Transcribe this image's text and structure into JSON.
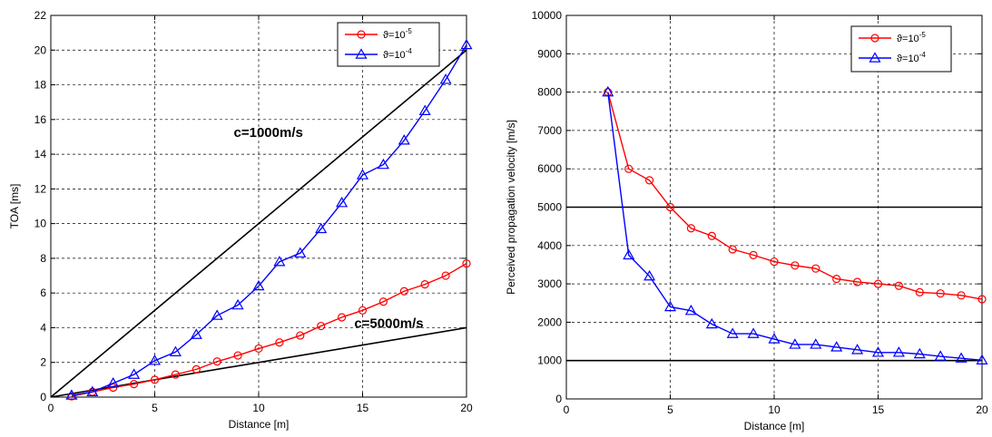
{
  "chart_data": [
    {
      "type": "line",
      "xlabel": "Distance   [m]",
      "ylabel": "TOA [ms]",
      "xlim": [
        0,
        20
      ],
      "ylim": [
        0,
        22
      ],
      "xticks": [
        "0",
        "5",
        "10",
        "15",
        "20"
      ],
      "yticks": [
        "0",
        "2",
        "4",
        "6",
        "8",
        "10",
        "12",
        "14",
        "16",
        "18",
        "20",
        "22"
      ],
      "grid": true,
      "legend_position": "top-right",
      "legend_base": "ϑ=10",
      "series": [
        {
          "name": "ϑ=10⁻⁵",
          "exponent": "-5",
          "color": "#ff0000",
          "marker": "circle",
          "x": [
            1,
            2,
            3,
            4,
            5,
            6,
            7,
            8,
            9,
            10,
            11,
            12,
            13,
            14,
            15,
            16,
            17,
            18,
            19,
            20
          ],
          "y": [
            0.05,
            0.3,
            0.55,
            0.75,
            1.0,
            1.3,
            1.6,
            2.05,
            2.4,
            2.8,
            3.15,
            3.55,
            4.1,
            4.6,
            5.0,
            5.5,
            6.1,
            6.5,
            7.0,
            7.7
          ]
        },
        {
          "name": "ϑ=10⁻⁴",
          "exponent": "-4",
          "color": "#0000ff",
          "marker": "triangle",
          "x": [
            1,
            2,
            3,
            4,
            5,
            6,
            7,
            8,
            9,
            10,
            11,
            12,
            13,
            14,
            15,
            16,
            17,
            18,
            19,
            20
          ],
          "y": [
            0.1,
            0.3,
            0.8,
            1.3,
            2.1,
            2.6,
            3.6,
            4.7,
            5.3,
            6.4,
            7.8,
            8.3,
            9.7,
            11.2,
            12.8,
            13.4,
            14.8,
            16.5,
            18.3,
            20.3
          ]
        }
      ],
      "reference_lines": [
        {
          "label": "c=1000m/s",
          "x": [
            0,
            20
          ],
          "y": [
            0,
            20
          ],
          "color": "#000000"
        },
        {
          "label": "c=5000m/s",
          "x": [
            0,
            20
          ],
          "y": [
            0,
            4
          ],
          "color": "#000000"
        }
      ],
      "annotations": [
        {
          "text": "c=1000m/s",
          "x": 8.8,
          "y": 15.0
        },
        {
          "text": "c=5000m/s",
          "x": 14.6,
          "y": 4.0
        }
      ]
    },
    {
      "type": "line",
      "xlabel": "Distance   [m]",
      "ylabel": "Perceived propagation velocity [m/s]",
      "xlim": [
        0,
        20
      ],
      "ylim": [
        0,
        10000
      ],
      "xticks": [
        "0",
        "5",
        "10",
        "15",
        "20"
      ],
      "yticks": [
        "0",
        "1000",
        "2000",
        "3000",
        "4000",
        "5000",
        "6000",
        "7000",
        "8000",
        "9000",
        "10000"
      ],
      "grid": true,
      "legend_position": "top-right",
      "legend_base": "ϑ=10",
      "series": [
        {
          "name": "ϑ=10⁻⁵",
          "exponent": "-5",
          "color": "#ff0000",
          "marker": "circle",
          "x": [
            2,
            3,
            4,
            5,
            6,
            7,
            8,
            9,
            10,
            11,
            12,
            13,
            14,
            15,
            16,
            17,
            18,
            19,
            20
          ],
          "y": [
            8000,
            6000,
            5700,
            5000,
            4450,
            4250,
            3900,
            3750,
            3580,
            3480,
            3400,
            3130,
            3050,
            3000,
            2950,
            2780,
            2750,
            2700,
            2600
          ]
        },
        {
          "name": "ϑ=10⁻⁴",
          "exponent": "-4",
          "color": "#0000ff",
          "marker": "triangle",
          "x": [
            2,
            3,
            4,
            5,
            6,
            7,
            8,
            9,
            10,
            11,
            12,
            13,
            14,
            15,
            16,
            17,
            18,
            19,
            20
          ],
          "y": [
            8000,
            3750,
            3200,
            2400,
            2300,
            1950,
            1700,
            1700,
            1560,
            1420,
            1420,
            1350,
            1280,
            1210,
            1210,
            1170,
            1110,
            1060,
            1010
          ]
        }
      ],
      "reference_lines": [
        {
          "x": [
            0,
            20
          ],
          "y": [
            5000,
            5000
          ],
          "color": "#000000"
        },
        {
          "x": [
            0,
            20
          ],
          "y": [
            1000,
            1000
          ],
          "color": "#000000"
        }
      ],
      "annotations": []
    }
  ]
}
